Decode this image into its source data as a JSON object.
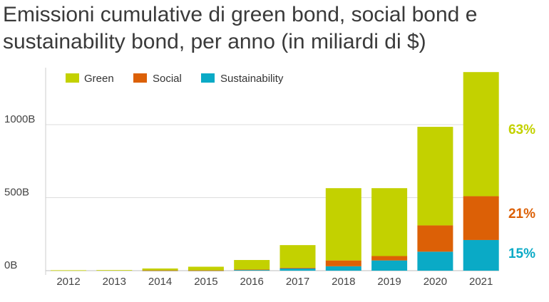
{
  "title": "Emissioni cumulative di green bond, social bond e sustainability bond, per anno (in miliardi di $)",
  "chart_data": {
    "type": "bar",
    "stacked": true,
    "title": "Emissioni cumulative di green bond, social bond e sustainability bond, per anno (in miliardi di $)",
    "xlabel": "",
    "ylabel": "",
    "categories": [
      "2012",
      "2013",
      "2014",
      "2015",
      "2016",
      "2017",
      "2018",
      "2019",
      "2020",
      "2021"
    ],
    "series": [
      {
        "name": "Sustainability",
        "color": "#0aaac6",
        "values": [
          0,
          0,
          1,
          1,
          5,
          15,
          30,
          70,
          130,
          210
        ]
      },
      {
        "name": "Social",
        "color": "#dc6006",
        "values": [
          0,
          0,
          1,
          1,
          3,
          5,
          40,
          30,
          180,
          300
        ]
      },
      {
        "name": "Green",
        "color": "#c3d100",
        "values": [
          3,
          4,
          13,
          25,
          65,
          155,
          495,
          465,
          675,
          850
        ]
      }
    ],
    "legend_order": [
      "Green",
      "Social",
      "Sustainability"
    ],
    "legend_position": "top-left",
    "yticks": [
      {
        "value": 0,
        "label": "0B"
      },
      {
        "value": 500,
        "label": "500B"
      },
      {
        "value": 1000,
        "label": "1000B"
      }
    ],
    "ylim": [
      0,
      1370
    ],
    "grid": true,
    "annotations": [
      {
        "text": "63%",
        "series": "Green",
        "color": "#c3d100"
      },
      {
        "text": "21%",
        "series": "Social",
        "color": "#dc6006"
      },
      {
        "text": "15%",
        "series": "Sustainability",
        "color": "#0aaac6"
      }
    ]
  }
}
